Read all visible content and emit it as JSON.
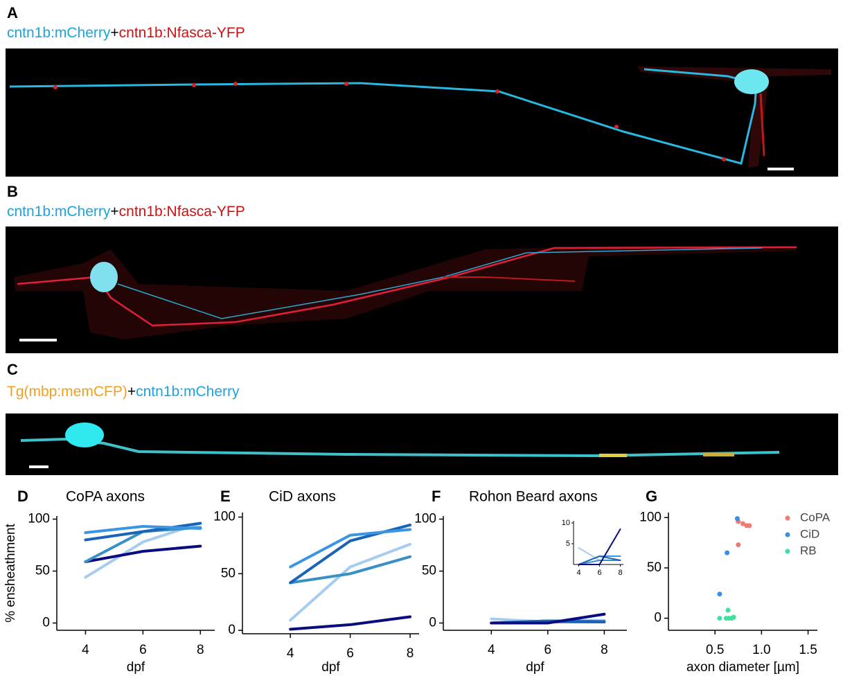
{
  "panels": [
    {
      "letter": "A",
      "caption": [
        {
          "text": "cntn1b:mCherry",
          "color": "#1ba3e0"
        },
        {
          "text": "+",
          "color": "#000000"
        },
        {
          "text": "cntn1b:Nfasca-YFP",
          "color": "#d01010"
        }
      ]
    },
    {
      "letter": "B",
      "caption": [
        {
          "text": "cntn1b:mCherry",
          "color": "#1ba3e0"
        },
        {
          "text": "+",
          "color": "#000000"
        },
        {
          "text": "cntn1b:Nfasca-YFP",
          "color": "#d01010"
        }
      ]
    },
    {
      "letter": "C",
      "caption": [
        {
          "text": "Tg(mbp:memCFP)",
          "color": "#f0a020"
        },
        {
          "text": "+",
          "color": "#000000"
        },
        {
          "text": "cntn1b:mCherry",
          "color": "#1ba3e0"
        }
      ]
    }
  ],
  "chart_data": [
    {
      "type": "line",
      "letter": "D",
      "title": "CoPA axons",
      "xlabel": "dpf",
      "ylabel": "% ensheathment",
      "x": [
        4,
        6,
        8
      ],
      "xlim": [
        3,
        8.5
      ],
      "xticks": [
        4,
        6,
        8
      ],
      "ylim": [
        -7,
        103
      ],
      "yticks": [
        0,
        50,
        100
      ],
      "series": [
        {
          "color": "#a6cdf0",
          "values": [
            44,
            78,
            96
          ]
        },
        {
          "color": "#0b0b80",
          "values": [
            59,
            69,
            74
          ]
        },
        {
          "color": "#3890c4",
          "values": [
            59,
            88,
            92
          ]
        },
        {
          "color": "#1a64b8",
          "values": [
            80,
            88,
            96
          ]
        },
        {
          "color": "#3a96e4",
          "values": [
            87,
            93,
            91
          ]
        }
      ]
    },
    {
      "type": "line",
      "letter": "E",
      "title": "CiD axons",
      "xlabel": "dpf",
      "x": [
        4,
        6,
        8
      ],
      "xlim": [
        2.4,
        8.3
      ],
      "xticks": [
        4,
        6,
        8
      ],
      "ylim": [
        -3,
        104
      ],
      "yticks": [
        0,
        50,
        100
      ],
      "series": [
        {
          "color": "#0b0b80",
          "values": [
            1,
            5,
            12
          ]
        },
        {
          "color": "#a6cdf0",
          "values": [
            9,
            56,
            76
          ]
        },
        {
          "color": "#3890c4",
          "values": [
            42,
            50,
            65
          ]
        },
        {
          "color": "#1a64b8",
          "values": [
            42,
            79,
            93
          ]
        },
        {
          "color": "#3a96e4",
          "values": [
            56,
            84,
            89
          ]
        }
      ]
    },
    {
      "type": "line",
      "letter": "F",
      "title": "Rohon Beard axons",
      "xlabel": "dpf",
      "x": [
        4,
        6,
        8
      ],
      "xlim": [
        2.3,
        8.8
      ],
      "xticks": [
        4,
        6,
        8
      ],
      "ylim": [
        -7,
        103
      ],
      "yticks": [
        0,
        50,
        100
      ],
      "series": [
        {
          "color": "#a6cdf0",
          "values": [
            4,
            1,
            1
          ]
        },
        {
          "color": "#3890c4",
          "values": [
            0,
            1,
            1
          ]
        },
        {
          "color": "#3a96e4",
          "values": [
            0,
            2,
            2
          ]
        },
        {
          "color": "#1a64b8",
          "values": [
            0,
            2,
            1
          ]
        },
        {
          "color": "#0b0b80",
          "values": [
            0,
            0,
            8.5
          ]
        }
      ],
      "inset": {
        "xlim": [
          3.5,
          8.3
        ],
        "xticks": [
          4,
          6,
          8
        ],
        "ylim": [
          0,
          10.5
        ],
        "yticks": [
          5,
          10
        ]
      }
    },
    {
      "type": "scatter",
      "letter": "G",
      "xlabel": "axon diameter [µm]",
      "xlim": [
        0,
        1.6
      ],
      "xticks": [
        0.5,
        {
          "value": 1.0,
          "label": "1.0"
        },
        1.5
      ],
      "ylim": [
        -12,
        105
      ],
      "yticks": [
        0,
        50,
        100
      ],
      "series": [
        {
          "name": "CoPA",
          "color": "#f07a72",
          "x": [
            0.75,
            0.8,
            0.84,
            0.87,
            0.75
          ],
          "values": [
            96,
            94,
            92,
            92,
            73
          ]
        },
        {
          "name": "CiD",
          "color": "#3a8ee6",
          "x": [
            0.74,
            0.63,
            0.55
          ],
          "values": [
            99,
            65,
            24
          ]
        },
        {
          "name": "RB",
          "color": "#3ee0a0",
          "x": [
            0.55,
            0.62,
            0.65,
            0.68,
            0.7,
            0.64
          ],
          "values": [
            0,
            0,
            0,
            0,
            1,
            8
          ]
        }
      ]
    }
  ]
}
